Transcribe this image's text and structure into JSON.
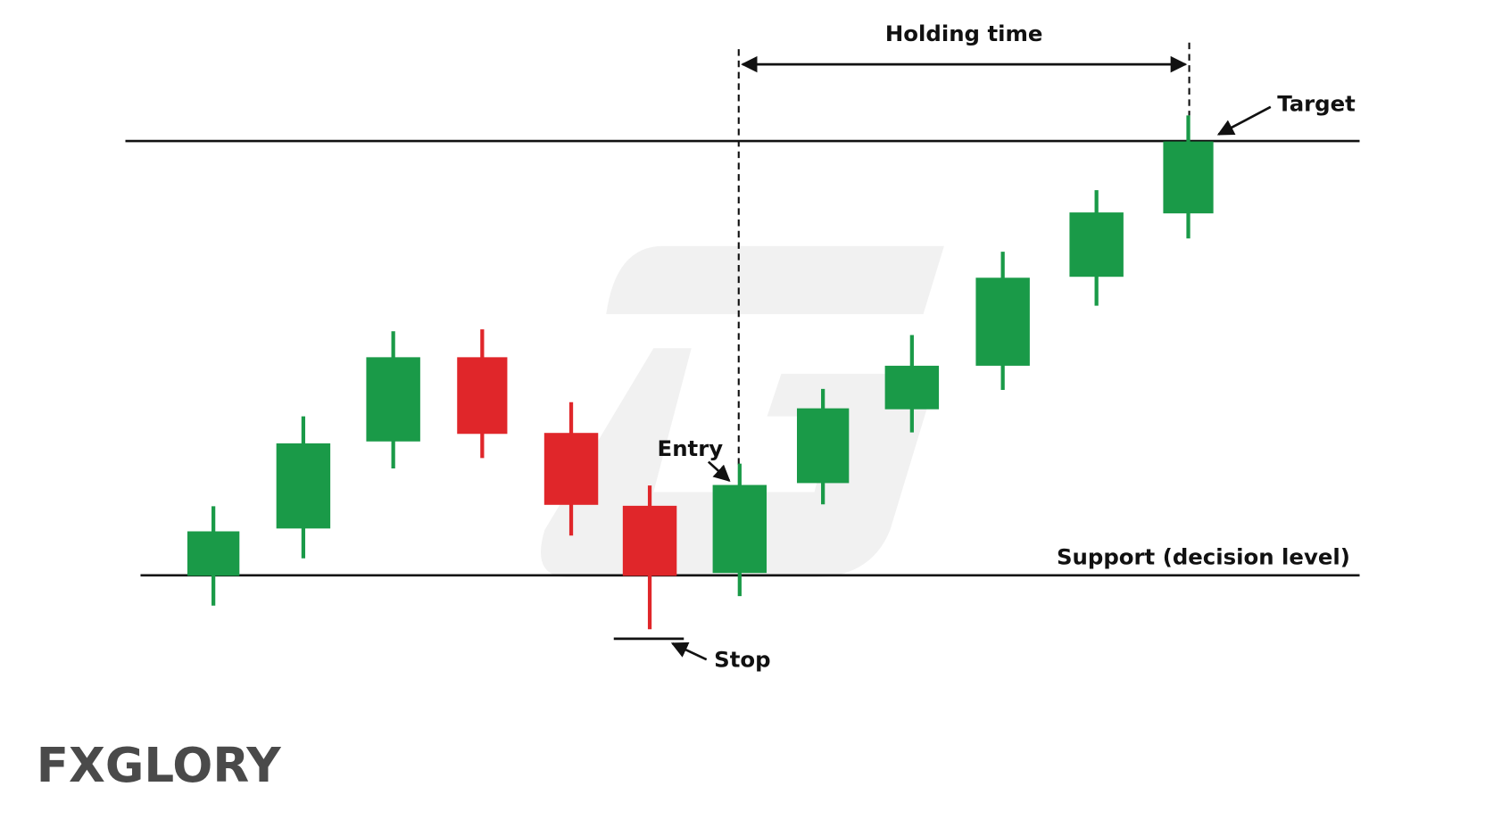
{
  "annotations": {
    "holding_time": "Holding time",
    "target": "Target",
    "entry": "Entry",
    "stop": "Stop",
    "support": "Support (decision level)"
  },
  "logo": "FXGLORY"
}
